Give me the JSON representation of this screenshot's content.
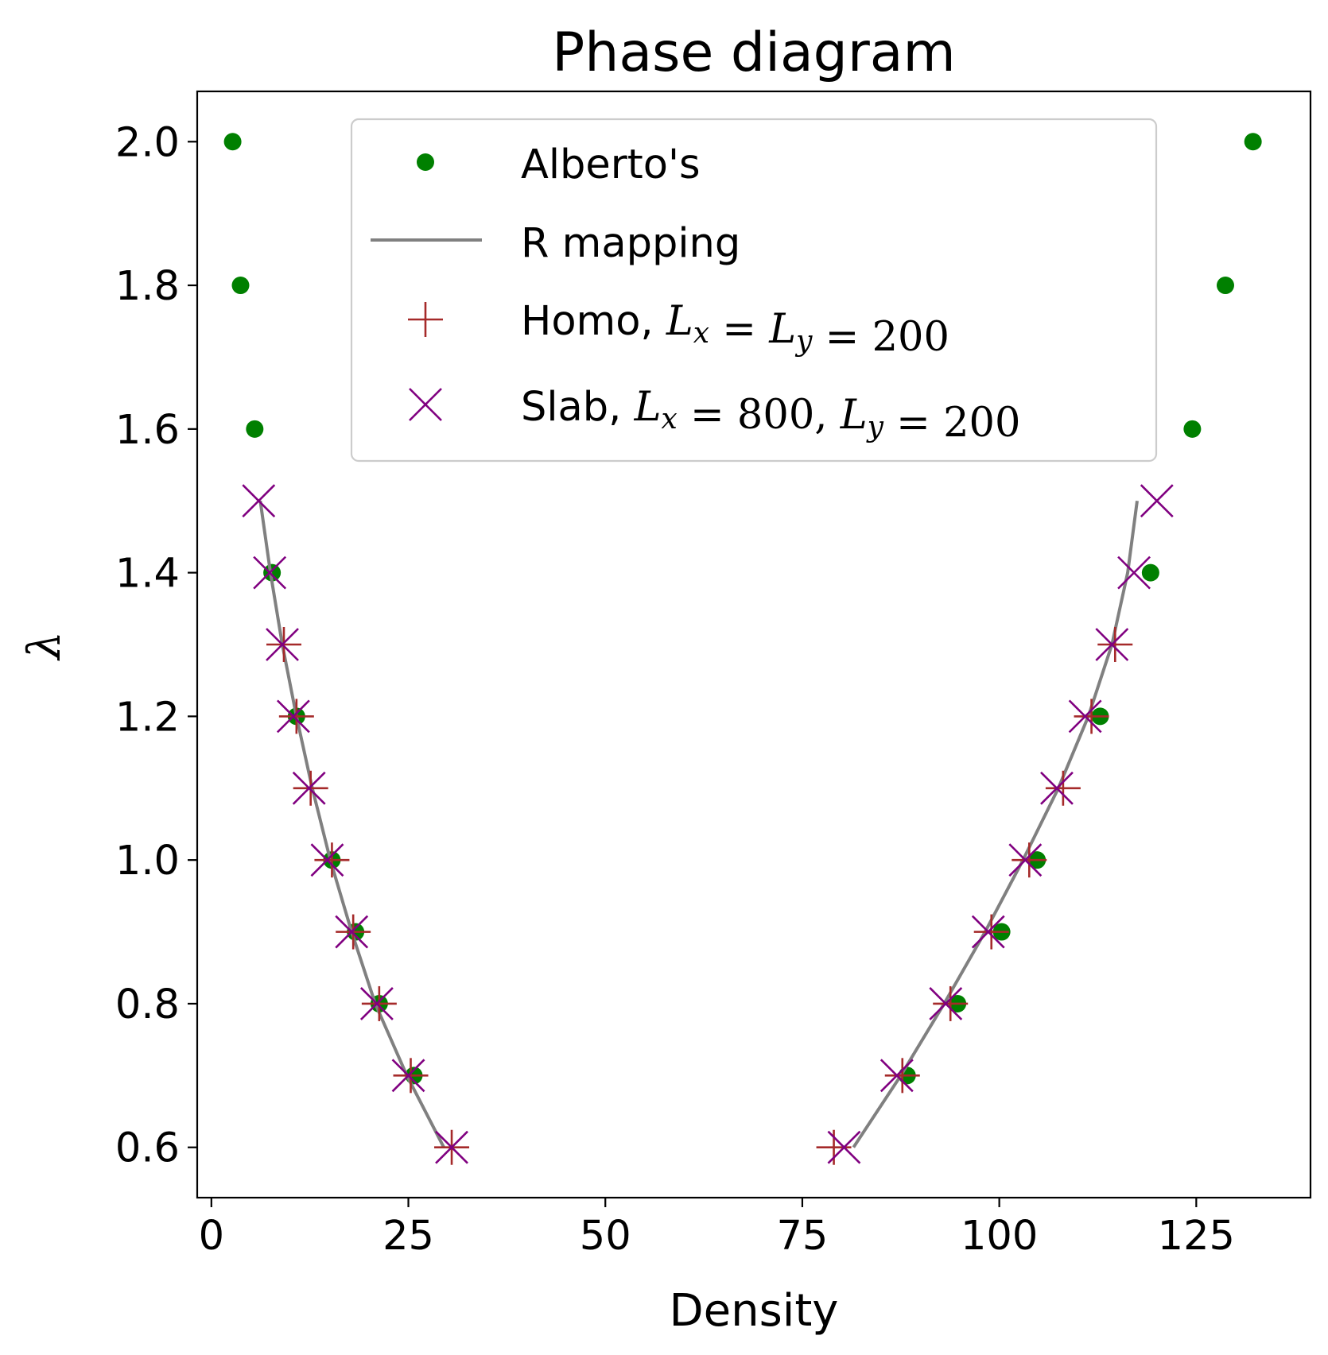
{
  "chart_data": {
    "type": "scatter",
    "title": "Phase diagram",
    "xlabel": "Density",
    "ylabel": "λ",
    "xlim": [
      -1.8,
      139.5
    ],
    "ylim": [
      0.53,
      2.07
    ],
    "xticks": [
      0,
      25,
      50,
      75,
      100,
      125
    ],
    "yticks": [
      0.6,
      0.8,
      1.0,
      1.2,
      1.4,
      1.6,
      1.8,
      2.0
    ],
    "xtick_labels": [
      "0",
      "25",
      "50",
      "75",
      "100",
      "125"
    ],
    "ytick_labels": [
      "0.6",
      "0.8",
      "1.0",
      "1.2",
      "1.4",
      "1.6",
      "1.8",
      "2.0"
    ],
    "grid": false,
    "legend_position": "upper center",
    "colors": {
      "alberto": "#008000",
      "r_mapping": "#808080",
      "homo": "#a52a2a",
      "slab": "#800080"
    },
    "series": [
      {
        "key": "alberto",
        "name": "Alberto's",
        "marker": "dot",
        "points": [
          [
            2.7,
            2.0
          ],
          [
            3.7,
            1.8
          ],
          [
            5.5,
            1.6
          ],
          [
            7.7,
            1.4
          ],
          [
            10.8,
            1.2
          ],
          [
            15.3,
            1.0
          ],
          [
            18.3,
            0.9
          ],
          [
            21.3,
            0.8
          ],
          [
            25.7,
            0.7
          ],
          [
            132.2,
            2.0
          ],
          [
            128.7,
            1.8
          ],
          [
            124.5,
            1.6
          ],
          [
            119.2,
            1.4
          ],
          [
            112.8,
            1.2
          ],
          [
            104.8,
            1.0
          ],
          [
            100.3,
            0.9
          ],
          [
            94.7,
            0.8
          ],
          [
            88.3,
            0.7
          ]
        ]
      },
      {
        "key": "r_mapping",
        "name": "R mapping",
        "marker": "line",
        "segments": [
          [
            [
              6.2,
              1.5
            ],
            [
              7.5,
              1.4
            ],
            [
              9.0,
              1.3
            ],
            [
              10.8,
              1.2
            ],
            [
              12.8,
              1.1
            ],
            [
              15.1,
              1.0
            ],
            [
              17.8,
              0.9
            ],
            [
              20.8,
              0.8
            ],
            [
              24.8,
              0.7
            ],
            [
              29.5,
              0.6
            ]
          ],
          [
            [
              81.5,
              0.6
            ],
            [
              87.5,
              0.7
            ],
            [
              93.0,
              0.8
            ],
            [
              98.2,
              0.9
            ],
            [
              103.0,
              1.0
            ],
            [
              107.5,
              1.1
            ],
            [
              111.3,
              1.2
            ],
            [
              114.3,
              1.3
            ],
            [
              116.3,
              1.4
            ],
            [
              117.5,
              1.5
            ]
          ]
        ]
      },
      {
        "key": "homo",
        "name": "Homo, L_x = L_y = 200",
        "marker": "plus",
        "points": [
          [
            9.2,
            1.3
          ],
          [
            10.8,
            1.2
          ],
          [
            12.6,
            1.1
          ],
          [
            15.3,
            1.0
          ],
          [
            18.0,
            0.9
          ],
          [
            21.3,
            0.8
          ],
          [
            25.3,
            0.7
          ],
          [
            30.5,
            0.6
          ],
          [
            79.0,
            0.6
          ],
          [
            87.7,
            0.7
          ],
          [
            93.8,
            0.8
          ],
          [
            99.0,
            0.9
          ],
          [
            103.8,
            1.0
          ],
          [
            108.1,
            1.1
          ],
          [
            111.7,
            1.2
          ],
          [
            114.7,
            1.3
          ]
        ]
      },
      {
        "key": "slab",
        "name": "Slab, L_x = 800, L_y = 200",
        "marker": "x",
        "points": [
          [
            6.0,
            1.5
          ],
          [
            7.4,
            1.4
          ],
          [
            9.0,
            1.3
          ],
          [
            10.4,
            1.2
          ],
          [
            12.4,
            1.1
          ],
          [
            14.7,
            1.0
          ],
          [
            17.8,
            0.9
          ],
          [
            21.0,
            0.8
          ],
          [
            25.0,
            0.7
          ],
          [
            30.5,
            0.6
          ],
          [
            80.3,
            0.6
          ],
          [
            87.0,
            0.7
          ],
          [
            93.2,
            0.8
          ],
          [
            98.6,
            0.9
          ],
          [
            103.3,
            1.0
          ],
          [
            107.3,
            1.1
          ],
          [
            110.9,
            1.2
          ],
          [
            114.3,
            1.3
          ],
          [
            117.1,
            1.4
          ],
          [
            120.0,
            1.5
          ]
        ]
      }
    ]
  },
  "legend": {
    "alberto": "Alberto's",
    "r_mapping": "R mapping",
    "homo": {
      "prefix": "Homo, ",
      "math": "L_x = L_y = 200"
    },
    "slab": {
      "prefix": "Slab, ",
      "math": "L_x = 800, L_y = 200"
    }
  }
}
